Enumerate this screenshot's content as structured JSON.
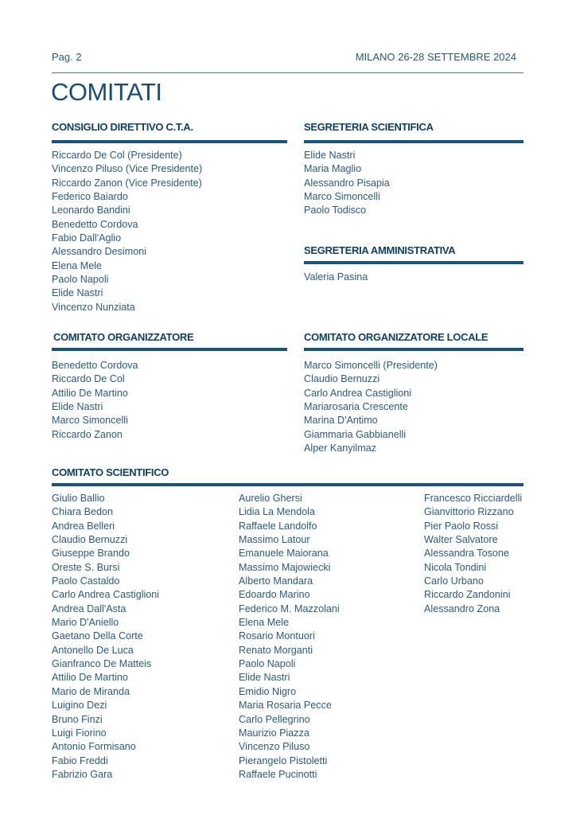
{
  "header": {
    "page": "Pag. 2",
    "event": "MILANO 26-28 SETTEMBRE 2024"
  },
  "title": "COMITATI",
  "consiglio": {
    "heading": "CONSIGLIO DIRETTIVO C.T.A.",
    "members": [
      "Riccardo De Col (Presidente)",
      "Vincenzo Piluso (Vice Presidente)",
      "Riccardo Zanon (Vice Presidente)",
      "Federico Baiardo",
      "Leonardo Bandini",
      "Benedetto Cordova",
      "Fabio Dall'Aglio",
      "Alessandro Desimoni",
      "Elena Mele",
      "Paolo Napoli",
      "Elide Nastri",
      "Vincenzo Nunziata"
    ]
  },
  "segreteria_scientifica": {
    "heading": "SEGRETERIA SCIENTIFICA",
    "members": [
      "Elide Nastri",
      "Maria Maglio",
      "Alessandro Pisapia",
      "Marco Simoncelli",
      "Paolo Todisco"
    ]
  },
  "segreteria_amministrativa": {
    "heading": "SEGRETERIA AMMINISTRATIVA",
    "members": [
      "Valeria Pasina"
    ]
  },
  "organizzatore": {
    "heading": "COMITATO ORGANIZZATORE",
    "members": [
      "Benedetto Cordova",
      "Riccardo De Col",
      "Attilio De Martino",
      "Elide Nastri",
      "Marco Simoncelli",
      "Riccardo Zanon"
    ]
  },
  "organizzatore_locale": {
    "heading": "COMITATO ORGANIZZATORE LOCALE",
    "members": [
      "Marco Simoncelli (Presidente)",
      "Claudio Bernuzzi",
      "Carlo Andrea Castiglioni",
      "Mariarosaria Crescente",
      "Marina D'Antimo",
      "Giammaria Gabbianelli",
      "Alper Kanyilmaz"
    ]
  },
  "scientifico": {
    "heading": "COMITATO SCIENTIFICO",
    "columns": [
      [
        "Giulio Ballio",
        "Chiara Bedon",
        "Andrea Belleri",
        "Claudio Bernuzzi",
        "Giuseppe Brando",
        "Oreste S. Bursi",
        "Paolo Castaldo",
        "Carlo Andrea Castiglioni",
        "Andrea Dall'Asta",
        "Mario D'Aniello",
        "Gaetano Della Corte",
        "Antonello De Luca",
        "Gianfranco De Matteis",
        "Attilio De Martino",
        "Mario de Miranda",
        "Luigino Dezi",
        "Bruno Finzi",
        "Luigi Fiorino",
        "Antonio Formisano",
        "Fabio Freddi",
        "Fabrizio Gara"
      ],
      [
        "Aurelio Ghersi",
        "Lidia La Mendola",
        "Raffaele Landolfo",
        "Massimo Latour",
        "Emanuele Maiorana",
        "Massimo Majowiecki",
        "Alberto Mandara",
        "Edoardo Marino",
        "Federico M. Mazzolani",
        "Elena Mele",
        "Rosario Montuori",
        "Renato Morganti",
        "Paolo Napoli",
        "Elide Nastri",
        "Emidio Nigro",
        "Maria Rosaria Pecce",
        "Carlo Pellegrino",
        "Maurizio Piazza",
        "Vincenzo Piluso",
        "Pierangelo Pistoletti",
        "Raffaele Pucinotti"
      ],
      [
        "Francesco Ricciardelli",
        "Gianvittorio Rizzano",
        "Pier Paolo Rossi",
        "Walter Salvatore",
        "Alessandra Tosone",
        "Nicola Tondini",
        "Carlo Urbano",
        "Riccardo Zandonini",
        "Alessandro Zona"
      ]
    ]
  },
  "colors": {
    "heading": "#123f60",
    "bar": "#1b5275",
    "text": "#2d5a78"
  }
}
